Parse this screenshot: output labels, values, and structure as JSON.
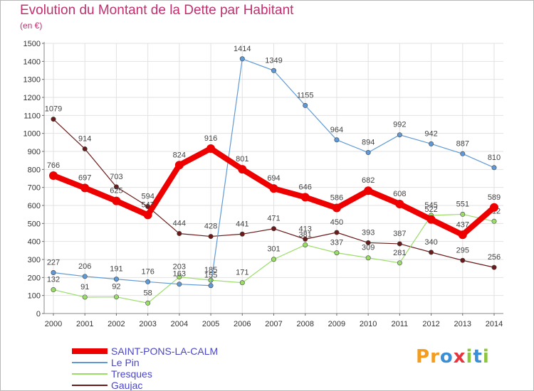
{
  "title": "Evolution du Montant de la Dette par Habitant",
  "subtitle": "(en €)",
  "logo": {
    "letters": [
      "P",
      "r",
      "o",
      "x",
      "i",
      "t",
      "i"
    ],
    "colors": [
      "#f39c1e",
      "#f39c1e",
      "#3b8fd6",
      "#e8343c",
      "#8cc63f",
      "#3b8fd6",
      "#8cc63f"
    ]
  },
  "chart_data": {
    "type": "line",
    "x": [
      2000,
      2001,
      2002,
      2003,
      2004,
      2005,
      2006,
      2007,
      2008,
      2009,
      2010,
      2011,
      2012,
      2013,
      2014
    ],
    "ylim": [
      0,
      1500
    ],
    "yticks": [
      0,
      100,
      200,
      300,
      400,
      500,
      600,
      700,
      800,
      900,
      1000,
      1100,
      1200,
      1300,
      1400,
      1500
    ],
    "grid": true,
    "legend_position": "bottom-left",
    "series": [
      {
        "name": "Gaujac",
        "color": "#6b1a1a",
        "values": [
          1079,
          914,
          703,
          594,
          444,
          428,
          441,
          471,
          413,
          450,
          393,
          387,
          340,
          295,
          256
        ]
      },
      {
        "name": "Tresques",
        "color": "#99dd66",
        "values": [
          132,
          91,
          92,
          58,
          203,
          185,
          171,
          301,
          381,
          337,
          309,
          281,
          545,
          551,
          512
        ]
      },
      {
        "name": "Le Pin",
        "color": "#5f9ad6",
        "values": [
          227,
          206,
          191,
          176,
          163,
          155,
          1414,
          1349,
          1155,
          964,
          894,
          992,
          942,
          887,
          810
        ]
      },
      {
        "name": "SAINT-PONS-LA-CALM",
        "color": "#ee0000",
        "values": [
          766,
          697,
          625,
          547,
          824,
          916,
          801,
          694,
          646,
          586,
          682,
          608,
          522,
          437,
          589
        ]
      }
    ],
    "legend_order": [
      "SAINT-PONS-LA-CALM",
      "Le Pin",
      "Tresques",
      "Gaujac"
    ]
  }
}
